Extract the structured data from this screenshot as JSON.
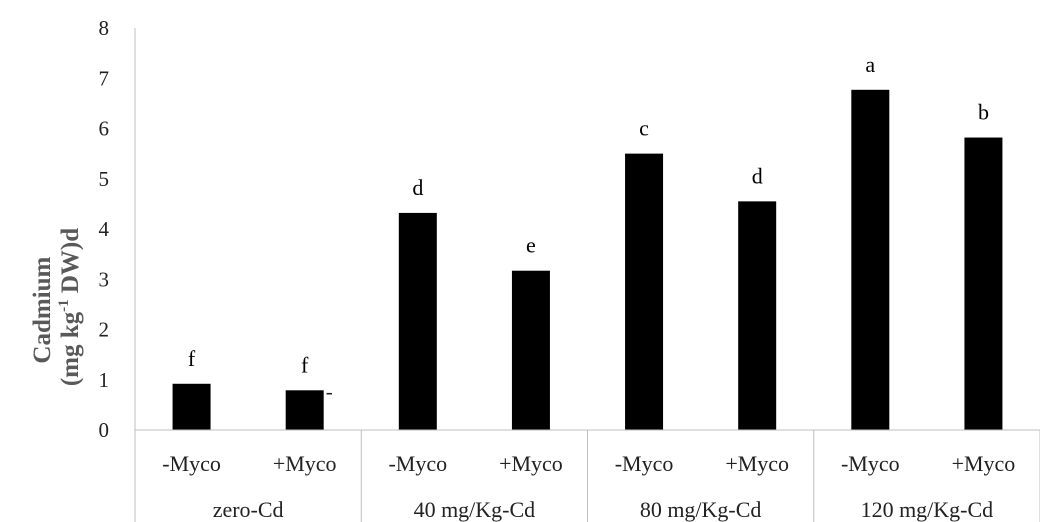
{
  "chart_data": {
    "type": "bar",
    "ylabel_line1": "Cadmium",
    "ylabel_line2_prefix": "(mg kg",
    "ylabel_line2_sup": "-1",
    "ylabel_line2_suffix": " DW)d",
    "ylim": [
      0,
      8
    ],
    "yticks": [
      "0",
      "1",
      "2",
      "3",
      "4",
      "5",
      "6",
      "7",
      "8"
    ],
    "groups": [
      "zero-Cd",
      "40 mg/Kg-Cd",
      "80 mg/Kg-Cd",
      "120 mg/Kg-Cd"
    ],
    "categories": [
      "-Myco",
      "+Myco",
      "-Myco",
      "+Myco",
      "-Myco",
      "+Myco",
      "-Myco",
      "+Myco"
    ],
    "values": [
      0.92,
      0.79,
      4.32,
      3.17,
      5.5,
      4.55,
      6.77,
      5.82
    ],
    "significance_letters": [
      "f",
      "f",
      "d",
      "e",
      "c",
      "d",
      "a",
      "b"
    ],
    "error_labels": [
      "",
      "-",
      "",
      "",
      "",
      "",
      "",
      ""
    ],
    "bar_color": "#000000",
    "axis_color": "#bfbfbf",
    "grid": false,
    "legend": "none"
  }
}
